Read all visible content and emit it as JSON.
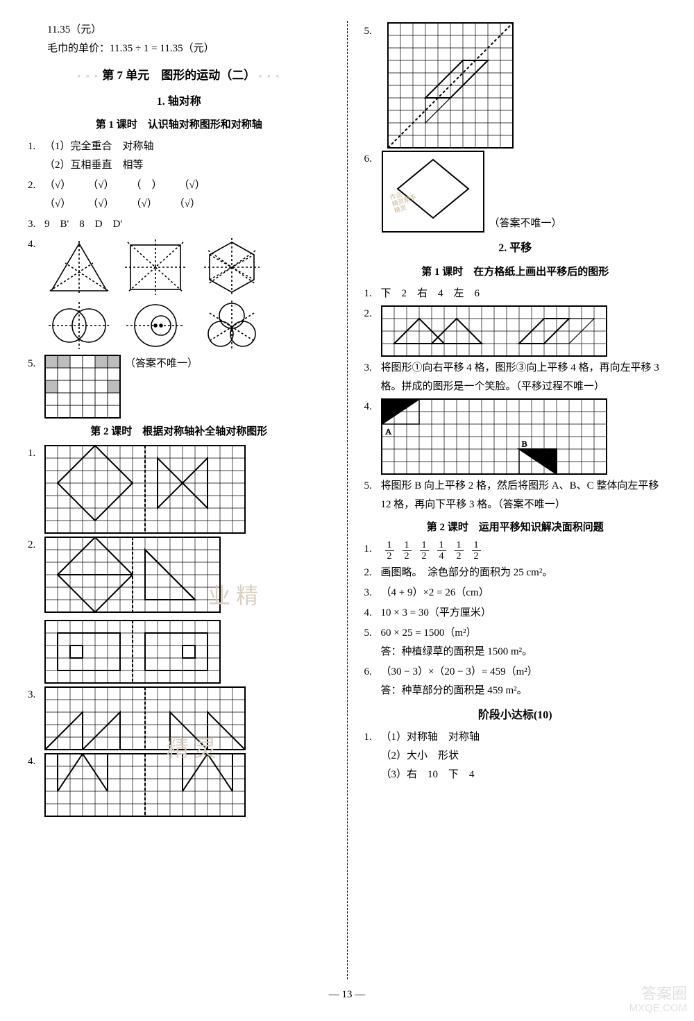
{
  "top": {
    "line1": "11.35（元）",
    "line2": "毛巾的单价：11.35 ÷ 1 = 11.35（元）"
  },
  "unit": {
    "prefix_dots": "◦ ◦ ◦",
    "title": "第 7 单元　图形的运动（二）",
    "suffix_dots": "◦ ◦ ◦"
  },
  "sec1": {
    "title": "1. 轴对称"
  },
  "lesson1_1": {
    "title": "第 1 课时　认识轴对称图形和对称轴"
  },
  "q1_1_1a": "（1）完全重合　对称轴",
  "q1_1_1b": "（2）互相垂直　相等",
  "q1_1_2_row1": [
    "（√）",
    "（√）",
    "（　）",
    "（√）"
  ],
  "q1_1_2_row2": [
    "（√）",
    "（√）",
    "（√）",
    "（√）"
  ],
  "q1_1_3": "9　B'　8　D　D'",
  "note_not_unique": "（答案不唯一）",
  "lesson1_2": {
    "title": "第 2 课时　根据对称轴补全轴对称图形"
  },
  "sec2": {
    "title": "2. 平移"
  },
  "lesson2_1": {
    "title": "第 1 课时　在方格纸上画出平移后的图形"
  },
  "q2_1_1": "下　2　右　4　左　6",
  "q2_1_3": "将图形①向右平移 4 格，图形③向上平移 4 格，再向左平移 3 格。拼成的图形是一个笑脸。（平移过程不唯一）",
  "q2_1_5": "将图形 B 向上平移 2 格，然后将图形 A、B、C 整体向左平移 12 格，再向下平移 3 格。（答案不唯一）",
  "lesson2_2": {
    "title": "第 2 课时　运用平移知识解决面积问题"
  },
  "q2_2_1_fracs": [
    [
      1,
      2
    ],
    [
      1,
      2
    ],
    [
      1,
      2
    ],
    [
      1,
      4
    ],
    [
      1,
      2
    ],
    [
      1,
      2
    ]
  ],
  "q2_2_2": "画图略。　涂色部分的面积为 25 cm²。",
  "q2_2_3": "（4 + 9）×2 = 26（cm）",
  "q2_2_4": "10 × 3 = 30（平方厘米）",
  "q2_2_5a": "60 × 25 = 1500（m²）",
  "q2_2_5b": "答：种植绿草的面积是 1500 m²。",
  "q2_2_6a": "（30 − 3）×（20 − 3）= 459（m²）",
  "q2_2_6b": "答：种草部分的面积是 459 m²。",
  "stage": {
    "title": "阶段小达标(10)"
  },
  "stage_1a": "（1）对称轴　对称轴",
  "stage_1b": "（2）大小　形状",
  "stage_1c": "（3）右　10　下　4",
  "pagenum": "— 13 —",
  "watermark": {
    "l1": "答案圈",
    "l2": "MXQE.COM"
  },
  "grid": {
    "cell": 18,
    "stroke": "#000",
    "stroke_w": 1,
    "fill_shade": "#bdbdbd"
  },
  "labels": {
    "A": "A",
    "B": "B"
  }
}
